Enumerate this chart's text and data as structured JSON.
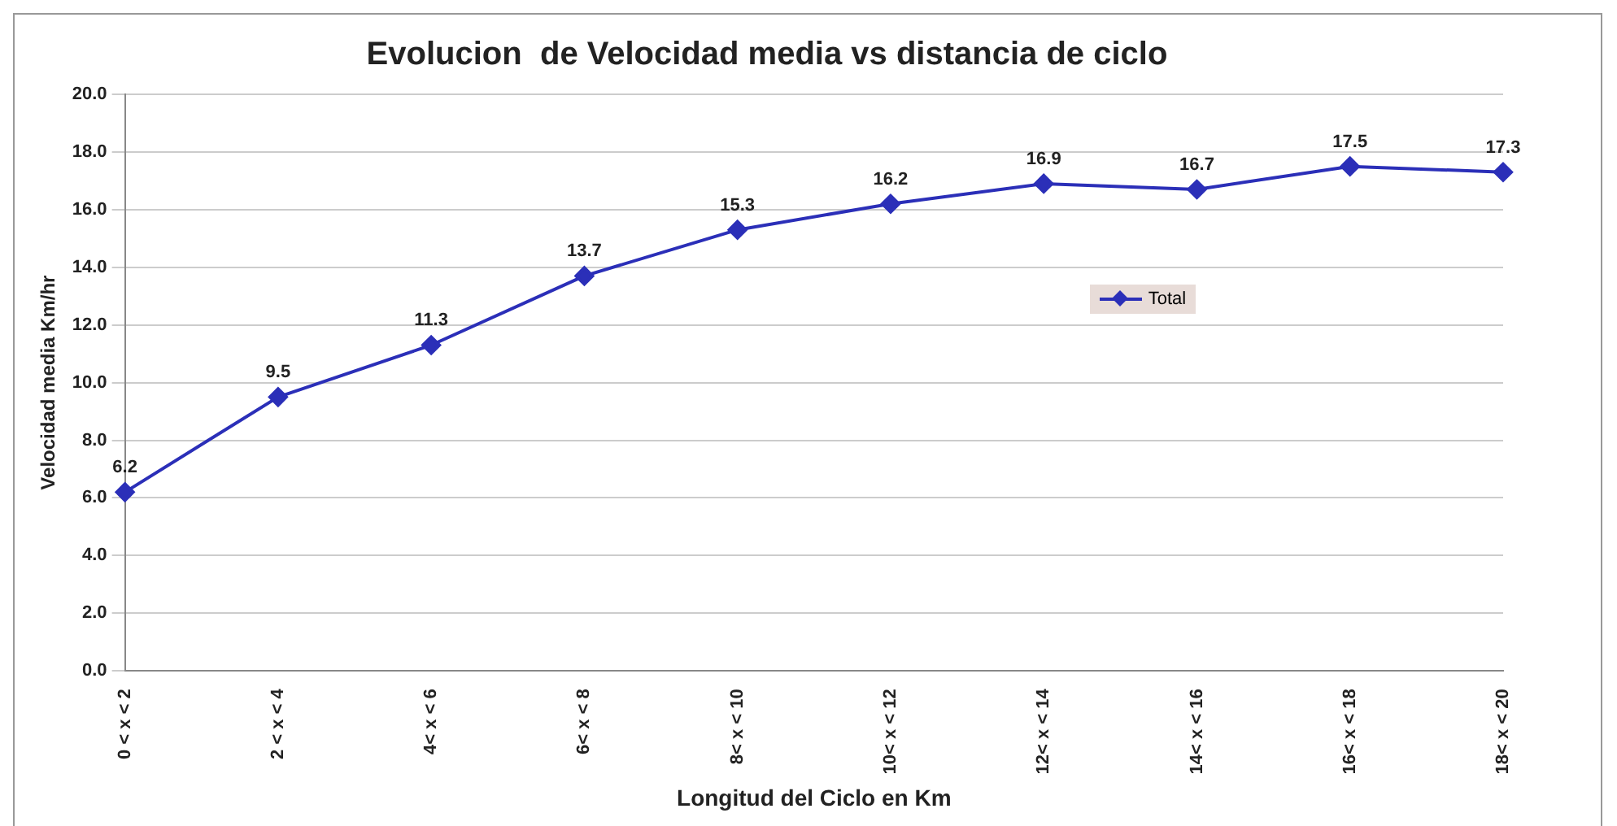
{
  "chart_data": {
    "type": "line",
    "title": "Evolucion  de Velocidad media vs distancia de ciclo",
    "xlabel": "Longitud del Ciclo en Km",
    "ylabel": "Velocidad media Km/hr",
    "categories": [
      "0 < x < 2",
      "2 < x < 4",
      "4< x < 6",
      "6< x < 8",
      "8< x < 10",
      "10< x < 12",
      "12< x < 14",
      "14< x < 16",
      "16< x < 18",
      "18< x < 20"
    ],
    "series": [
      {
        "name": "Total",
        "color": "#2b2fb8",
        "values": [
          6.2,
          9.5,
          11.3,
          13.7,
          15.3,
          16.2,
          16.9,
          16.7,
          17.5,
          17.3
        ]
      }
    ],
    "ylim": [
      0,
      20
    ],
    "yticks": [
      {
        "value": 0,
        "label": "0.0"
      },
      {
        "value": 2,
        "label": "2.0"
      },
      {
        "value": 4,
        "label": "4.0"
      },
      {
        "value": 6,
        "label": "6.0"
      },
      {
        "value": 8,
        "label": "8.0"
      },
      {
        "value": 10,
        "label": "10.0"
      },
      {
        "value": 12,
        "label": "12.0"
      },
      {
        "value": 14,
        "label": "14.0"
      },
      {
        "value": 16,
        "label": "16.0"
      },
      {
        "value": 18,
        "label": "18.0"
      },
      {
        "value": 20,
        "label": "20.0"
      }
    ],
    "grid": "y",
    "legend": "right",
    "marker": "diamond",
    "line_style": "solid",
    "data_labels": true
  }
}
